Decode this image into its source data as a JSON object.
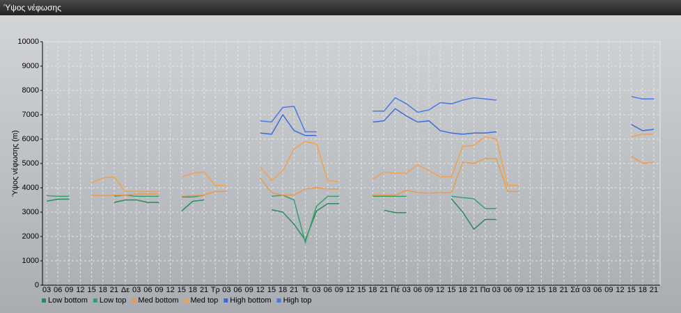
{
  "header": {
    "title": "Ύψος νέφωσης"
  },
  "chart_data": {
    "type": "line",
    "y_label": "Ύψος νέφωσης (m)",
    "categories": [
      "03",
      "06",
      "09",
      "12",
      "15",
      "18",
      "21",
      "Δε",
      "03",
      "06",
      "09",
      "12",
      "15",
      "18",
      "21",
      "Τρ",
      "03",
      "06",
      "09",
      "12",
      "15",
      "18",
      "21",
      "Τε",
      "03",
      "06",
      "09",
      "12",
      "15",
      "18",
      "21",
      "Πέ",
      "03",
      "06",
      "09",
      "12",
      "15",
      "18",
      "21",
      "Πα",
      "03",
      "06",
      "09",
      "12",
      "15",
      "18",
      "21",
      "Σά",
      "03",
      "06",
      "09",
      "12",
      "15",
      "18",
      "21"
    ],
    "ylim": [
      0,
      10000
    ],
    "yticks": [
      0,
      1000,
      2000,
      3000,
      4000,
      5000,
      6000,
      7000,
      8000,
      9000,
      10000
    ],
    "grid": true,
    "legend": "bottom",
    "series": [
      {
        "name": "Low bottom",
        "color": "#2a8a58",
        "values": [
          3450,
          3530,
          3530,
          null,
          null,
          null,
          3400,
          3500,
          3500,
          3400,
          3400,
          null,
          3050,
          3450,
          3500,
          null,
          null,
          null,
          null,
          null,
          3100,
          3000,
          2500,
          1850,
          3050,
          3350,
          3350,
          null,
          null,
          null,
          3080,
          2980,
          2980,
          null,
          null,
          null,
          3550,
          3000,
          2300,
          2700,
          2700,
          null,
          null,
          null,
          null,
          null,
          null,
          null,
          null,
          null,
          null,
          null,
          null,
          null,
          null
        ]
      },
      {
        "name": "Low top",
        "color": "#35a070",
        "values": [
          3680,
          3650,
          3650,
          null,
          null,
          null,
          3650,
          3700,
          3650,
          3650,
          3650,
          null,
          3620,
          3620,
          3700,
          null,
          null,
          null,
          null,
          null,
          3650,
          3700,
          3500,
          1750,
          3250,
          3650,
          3650,
          null,
          null,
          3650,
          3650,
          3650,
          3650,
          null,
          null,
          null,
          3650,
          3600,
          3550,
          3150,
          3150,
          null,
          null,
          null,
          null,
          null,
          null,
          null,
          null,
          null,
          null,
          null,
          null,
          null,
          null
        ]
      },
      {
        "name": "Med bottom",
        "color": "#ec9a4a",
        "values": [
          null,
          null,
          null,
          null,
          3700,
          3680,
          3700,
          3700,
          3750,
          3750,
          3750,
          null,
          3650,
          3680,
          3700,
          3850,
          3850,
          null,
          null,
          4400,
          3800,
          3700,
          3700,
          3950,
          4000,
          3950,
          3950,
          null,
          null,
          3700,
          3700,
          3700,
          3900,
          3800,
          3780,
          3800,
          3800,
          5050,
          5000,
          5200,
          5200,
          3850,
          3850,
          null,
          null,
          null,
          null,
          null,
          null,
          null,
          null,
          null,
          5300,
          5000,
          5050
        ]
      },
      {
        "name": "Med top",
        "color": "#f4a04c",
        "values": [
          null,
          null,
          null,
          null,
          4200,
          4400,
          4450,
          3850,
          3850,
          3850,
          3850,
          null,
          4450,
          4600,
          4650,
          4100,
          4100,
          null,
          null,
          4850,
          4300,
          4700,
          5600,
          5900,
          5800,
          4300,
          4250,
          null,
          null,
          4350,
          4650,
          4600,
          4600,
          4950,
          4700,
          4450,
          4450,
          5700,
          5750,
          6100,
          6000,
          4100,
          4100,
          null,
          null,
          null,
          null,
          null,
          null,
          null,
          null,
          null,
          6100,
          6200,
          6200
        ]
      },
      {
        "name": "High bottom",
        "color": "#3c6ad8",
        "values": [
          null,
          null,
          null,
          null,
          null,
          null,
          null,
          null,
          null,
          null,
          null,
          null,
          null,
          null,
          null,
          null,
          null,
          null,
          null,
          6250,
          6200,
          7000,
          6350,
          6150,
          6150,
          null,
          null,
          null,
          null,
          6700,
          6750,
          7250,
          6950,
          6700,
          6750,
          6350,
          6250,
          6200,
          6250,
          6250,
          6300,
          null,
          null,
          null,
          null,
          null,
          null,
          null,
          null,
          null,
          null,
          null,
          6600,
          6350,
          6400
        ]
      },
      {
        "name": "High top",
        "color": "#4a78e6",
        "values": [
          null,
          null,
          null,
          null,
          null,
          null,
          null,
          null,
          null,
          null,
          null,
          null,
          null,
          null,
          null,
          null,
          null,
          null,
          null,
          6750,
          6700,
          7300,
          7350,
          6300,
          6300,
          null,
          null,
          null,
          null,
          7150,
          7150,
          7700,
          7450,
          7100,
          7200,
          7500,
          7450,
          7600,
          7700,
          7650,
          7600,
          null,
          null,
          null,
          null,
          null,
          null,
          null,
          null,
          null,
          null,
          null,
          7750,
          7650,
          7650
        ]
      }
    ]
  }
}
